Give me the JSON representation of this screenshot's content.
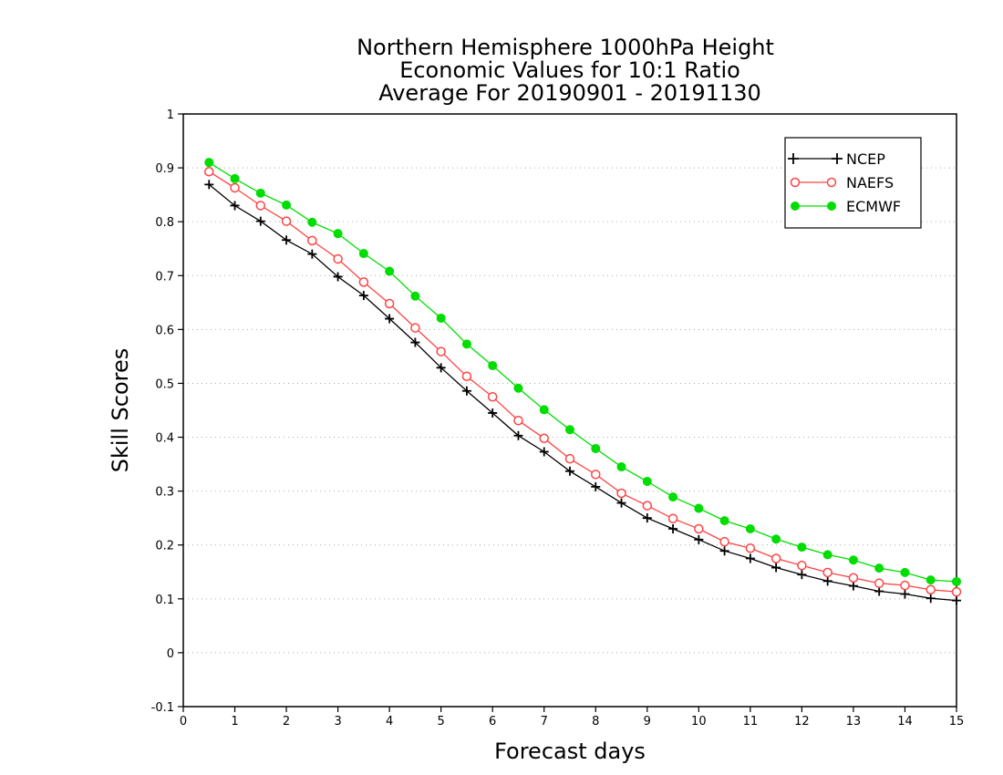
{
  "chart_data": {
    "type": "line",
    "title": [
      "Northern Hemisphere 1000hPa Height",
      "Economic Values for 10:1 Ratio",
      "Average For 20190901 - 20191130"
    ],
    "xlabel": "Forecast days",
    "ylabel": "Skill Scores",
    "xlim": [
      0,
      15
    ],
    "ylim": [
      -0.1,
      1
    ],
    "xticks": [
      "0",
      "1",
      "2",
      "3",
      "4",
      "5",
      "6",
      "7",
      "8",
      "9",
      "10",
      "11",
      "12",
      "13",
      "14",
      "15"
    ],
    "yticks": [
      "-0.1",
      "0",
      "0.1",
      "0.2",
      "0.3",
      "0.4",
      "0.5",
      "0.6",
      "0.7",
      "0.8",
      "0.9",
      "1"
    ],
    "grid": "horizontal dotted",
    "legend_position": "top-right",
    "x": [
      0.5,
      1,
      1.5,
      2,
      2.5,
      3,
      3.5,
      4,
      4.5,
      5,
      5.5,
      6,
      6.5,
      7,
      7.5,
      8,
      8.5,
      9,
      9.5,
      10,
      10.5,
      11,
      11.5,
      12,
      12.5,
      13,
      13.5,
      14,
      14.5,
      15
    ],
    "series": [
      {
        "name": "NCEP",
        "color": "#000000",
        "marker": "plus",
        "values": [
          0.869,
          0.83,
          0.801,
          0.766,
          0.74,
          0.698,
          0.663,
          0.62,
          0.576,
          0.529,
          0.486,
          0.445,
          0.403,
          0.373,
          0.337,
          0.308,
          0.278,
          0.25,
          0.23,
          0.21,
          0.189,
          0.175,
          0.158,
          0.145,
          0.133,
          0.124,
          0.114,
          0.109,
          0.101,
          0.097
        ]
      },
      {
        "name": "NAEFS",
        "color": "#ff4444",
        "marker": "open-circle",
        "values": [
          0.893,
          0.863,
          0.83,
          0.801,
          0.765,
          0.731,
          0.688,
          0.648,
          0.603,
          0.559,
          0.513,
          0.475,
          0.431,
          0.398,
          0.36,
          0.331,
          0.296,
          0.273,
          0.249,
          0.23,
          0.206,
          0.194,
          0.175,
          0.162,
          0.149,
          0.139,
          0.129,
          0.125,
          0.117,
          0.113
        ]
      },
      {
        "name": "ECMWF",
        "color": "#00dd00",
        "marker": "filled-circle",
        "values": [
          0.91,
          0.88,
          0.853,
          0.831,
          0.799,
          0.778,
          0.741,
          0.708,
          0.662,
          0.621,
          0.573,
          0.533,
          0.491,
          0.451,
          0.414,
          0.379,
          0.345,
          0.318,
          0.289,
          0.268,
          0.245,
          0.23,
          0.211,
          0.196,
          0.182,
          0.172,
          0.157,
          0.149,
          0.135,
          0.132
        ]
      }
    ]
  }
}
